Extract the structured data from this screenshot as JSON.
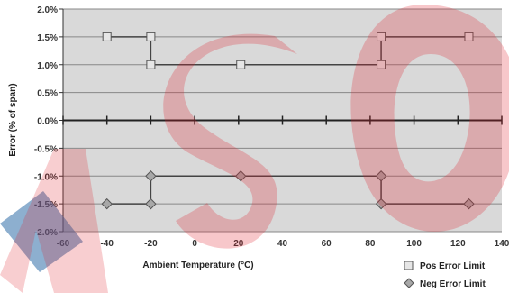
{
  "chart_data": {
    "type": "line",
    "title": "",
    "xlabel": "Ambient Temperature (°C)",
    "ylabel": "Error (% of span)",
    "xlim": [
      -60,
      140
    ],
    "ylim": [
      -2.0,
      2.0
    ],
    "x_ticks": [
      -60,
      -40,
      -20,
      0,
      20,
      40,
      60,
      80,
      100,
      120,
      140
    ],
    "x_tick_labels": [
      "-60",
      "-40",
      "-20",
      "0",
      "20",
      "40",
      "60",
      "80",
      "100",
      "120",
      "140"
    ],
    "y_ticks": [
      2.0,
      1.5,
      1.0,
      0.5,
      0.0,
      -0.5,
      -1.0,
      -1.5,
      -2.0
    ],
    "y_tick_labels": [
      "2.0%",
      "1.5%",
      "1.0%",
      "0.5%",
      "0.0%",
      "-0.5%",
      "-1.0%",
      "-1.5%",
      "-2.0%"
    ],
    "grid": true,
    "legend_position": "bottom-right",
    "series": [
      {
        "name": "Pos Error Limit",
        "marker": "square",
        "color": "#444444",
        "marker_fill": "#e6e6e6",
        "points": [
          [
            -40,
            1.5
          ],
          [
            -20,
            1.5
          ],
          [
            -20,
            1.0
          ],
          [
            21,
            1.0
          ],
          [
            85,
            1.0
          ],
          [
            85,
            1.5
          ],
          [
            125,
            1.5
          ]
        ]
      },
      {
        "name": "Neg Error Limit",
        "marker": "diamond",
        "color": "#444444",
        "marker_fill": "#a8a8a8",
        "points": [
          [
            -40,
            -1.5
          ],
          [
            -20,
            -1.5
          ],
          [
            -20,
            -1.0
          ],
          [
            21,
            -1.0
          ],
          [
            85,
            -1.0
          ],
          [
            85,
            -1.5
          ],
          [
            125,
            -1.5
          ]
        ]
      }
    ]
  },
  "style": {
    "plot_background": "#d9d9d9",
    "grid_color": "#888888",
    "watermark_color": "#e0202a",
    "watermark_blue": "#2f6ea8"
  }
}
